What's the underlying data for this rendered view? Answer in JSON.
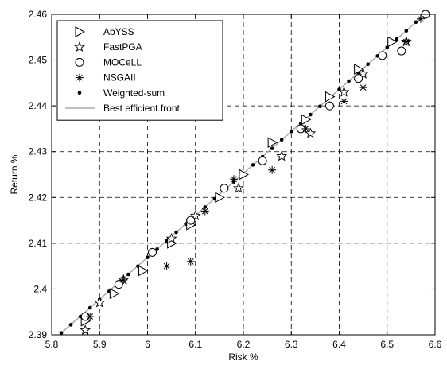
{
  "chart_data": {
    "type": "scatter",
    "title": "",
    "xlabel": "Risk %",
    "ylabel": "Return %",
    "xlim": [
      5.8,
      6.6
    ],
    "ylim": [
      2.39,
      2.46
    ],
    "xticks": [
      "5.8",
      "5.9",
      "6",
      "6.1",
      "6.2",
      "6.3",
      "6.4",
      "6.5",
      "6.6"
    ],
    "yticks": [
      "2.39",
      "2.4",
      "2.41",
      "2.42",
      "2.43",
      "2.44",
      "2.45",
      "2.46"
    ],
    "grid": true,
    "legend_position": "top-left",
    "series": [
      {
        "name": "AbYSS",
        "marker": "triangle-right",
        "color": "#000000",
        "x": [
          5.87,
          5.93,
          5.99,
          6.05,
          6.09,
          6.15,
          6.2,
          6.26,
          6.33,
          6.38,
          6.44,
          6.51
        ],
        "y": [
          2.393,
          2.399,
          2.404,
          2.41,
          2.414,
          2.42,
          2.425,
          2.432,
          2.437,
          2.442,
          2.448,
          2.454
        ]
      },
      {
        "name": "FastPGA",
        "marker": "star",
        "color": "#000000",
        "x": [
          5.87,
          5.9,
          5.95,
          6.05,
          6.1,
          6.19,
          6.28,
          6.34,
          6.41,
          6.45,
          6.54
        ],
        "y": [
          2.391,
          2.397,
          2.402,
          2.411,
          2.416,
          2.422,
          2.429,
          2.434,
          2.443,
          2.447,
          2.454
        ]
      },
      {
        "name": "MOCeLL",
        "marker": "circle",
        "color": "#000000",
        "x": [
          5.87,
          5.94,
          6.01,
          6.09,
          6.16,
          6.24,
          6.32,
          6.38,
          6.44,
          6.49,
          6.53,
          6.58
        ],
        "y": [
          2.394,
          2.401,
          2.408,
          2.415,
          2.422,
          2.428,
          2.435,
          2.44,
          2.446,
          2.451,
          2.452,
          2.46
        ]
      },
      {
        "name": "NSGAII",
        "marker": "asterisk",
        "color": "#000000",
        "x": [
          5.88,
          5.95,
          6.04,
          6.09,
          6.12,
          6.18,
          6.26,
          6.33,
          6.41,
          6.45,
          6.54,
          6.57
        ],
        "y": [
          2.394,
          2.402,
          2.405,
          2.406,
          2.417,
          2.424,
          2.426,
          2.435,
          2.441,
          2.444,
          2.454,
          2.459
        ]
      },
      {
        "name": "Weighted-sum",
        "marker": "dot",
        "color": "#000000",
        "x": [
          5.82,
          5.84,
          5.86,
          5.88,
          5.9,
          5.92,
          5.94,
          5.96,
          5.98,
          6.0,
          6.02,
          6.04,
          6.06,
          6.08,
          6.1,
          6.12,
          6.14,
          6.16,
          6.18,
          6.2,
          6.22,
          6.24,
          6.26,
          6.28,
          6.3,
          6.32,
          6.34,
          6.36,
          6.38,
          6.4,
          6.42,
          6.44,
          6.46,
          6.48,
          6.5,
          6.52,
          6.54,
          6.56,
          6.58
        ],
        "y": [
          2.3904,
          2.3922,
          2.394,
          2.3959,
          2.3977,
          2.3995,
          2.4014,
          2.4032,
          2.405,
          2.4069,
          2.4087,
          2.4105,
          2.4124,
          2.4142,
          2.4161,
          2.4179,
          2.4197,
          2.4216,
          2.4234,
          2.4252,
          2.4271,
          2.4289,
          2.4307,
          2.4326,
          2.4344,
          2.4362,
          2.4381,
          2.4399,
          2.4418,
          2.4436,
          2.4454,
          2.4473,
          2.4491,
          2.4509,
          2.4528,
          2.4546,
          2.4564,
          2.4583,
          2.4601
        ]
      },
      {
        "name": "Best efficient front",
        "marker": "line",
        "color": "#aaaaaa",
        "x": [
          5.82,
          6.58
        ],
        "y": [
          2.3904,
          2.4601
        ]
      }
    ]
  }
}
